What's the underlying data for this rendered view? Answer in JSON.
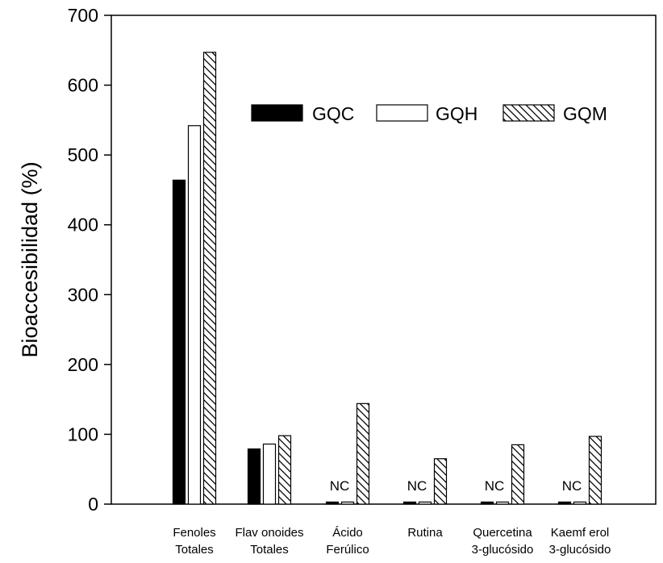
{
  "chart_data": {
    "type": "bar",
    "ylabel": "Bioaccesibilidad (%)",
    "ylim": [
      0,
      700
    ],
    "yticks": [
      0,
      100,
      200,
      300,
      400,
      500,
      600,
      700
    ],
    "grid": false,
    "legend_position": "top-right",
    "categories": [
      [
        "Fenoles",
        "Totales"
      ],
      [
        "Flav onoides",
        "Totales"
      ],
      [
        "Ácido",
        "Ferúlico"
      ],
      [
        "Rutina"
      ],
      [
        "Quercetina",
        "3-glucósido"
      ],
      [
        "Kaemf erol",
        "3-glucósido"
      ]
    ],
    "series": [
      {
        "name": "GQC",
        "fill": "#000000",
        "values": [
          464,
          79,
          3,
          3,
          3,
          3
        ]
      },
      {
        "name": "GQH",
        "fill": "#ffffff",
        "values": [
          542,
          86,
          3,
          3,
          3,
          3
        ]
      },
      {
        "name": "GQM",
        "fill": "hatch",
        "values": [
          647,
          98,
          144,
          65,
          85,
          97
        ]
      }
    ],
    "annotations": [
      {
        "text": "NC",
        "category": 2
      },
      {
        "text": "NC",
        "category": 3
      },
      {
        "text": "NC",
        "category": 4
      },
      {
        "text": "NC",
        "category": 5
      }
    ]
  }
}
